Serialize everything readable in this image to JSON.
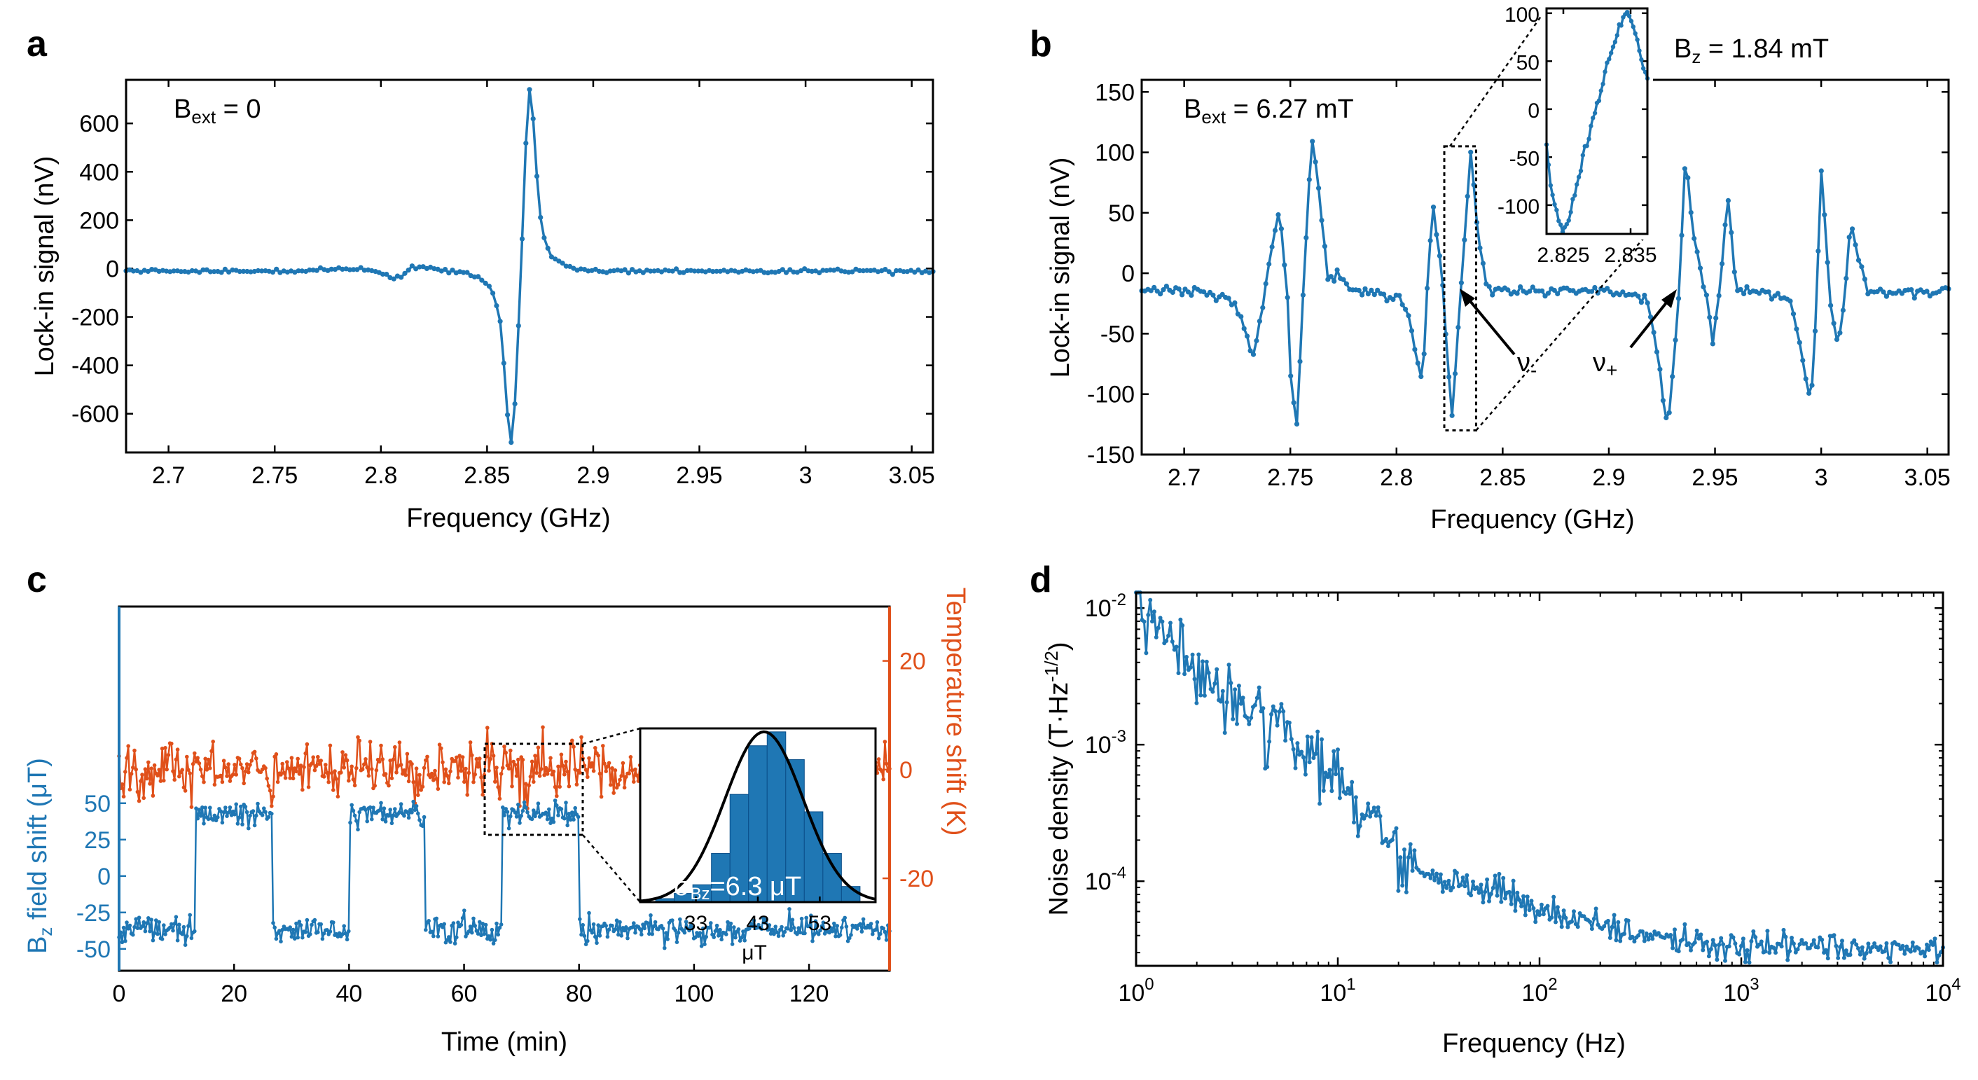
{
  "colors": {
    "series": "#1f77b4",
    "temperature": "#e0501a",
    "fit": "#000000",
    "axis": "#000000"
  },
  "panel_labels": [
    "a",
    "b",
    "c",
    "d"
  ],
  "chart_data": [
    {
      "panel": "a",
      "type": "line",
      "title": "",
      "annotation": "B_ext = 0",
      "annotation_main": "B",
      "annotation_sub": "ext",
      "annotation_rest": " = 0",
      "xlabel": "Frequency (GHz)",
      "ylabel": "Lock-in signal (nV)",
      "xlim": [
        2.68,
        3.06
      ],
      "ylim": [
        -760,
        780
      ],
      "xticks": [
        2.7,
        2.75,
        2.8,
        2.85,
        2.9,
        2.95,
        3.0,
        3.05
      ],
      "xtick_labels": [
        "2.7",
        "2.75",
        "2.8",
        "2.85",
        "2.9",
        "2.95",
        "3",
        "3.05"
      ],
      "yticks": [
        -600,
        -400,
        -200,
        0,
        200,
        400,
        600
      ],
      "ytick_labels": [
        "-600",
        "-400",
        "-200",
        "0",
        "200",
        "400",
        "600"
      ],
      "series": [
        {
          "name": "lock-in",
          "x": [
            2.68,
            2.73,
            2.77,
            2.78,
            2.8,
            2.805,
            2.81,
            2.815,
            2.83,
            2.845,
            2.852,
            2.856,
            2.858,
            2.86,
            2.862,
            2.864,
            2.866,
            2.868,
            2.869,
            2.87,
            2.872,
            2.874,
            2.876,
            2.88,
            2.89,
            2.9,
            2.93,
            2.97,
            3.02,
            3.06
          ],
          "y": [
            -10,
            -10,
            -10,
            0,
            -15,
            -40,
            -30,
            10,
            -10,
            -30,
            -80,
            -200,
            -400,
            -650,
            -750,
            -400,
            0,
            450,
            700,
            740,
            600,
            300,
            150,
            50,
            0,
            -10,
            -10,
            -10,
            -10,
            -10
          ]
        }
      ]
    },
    {
      "panel": "b",
      "type": "line",
      "title": "",
      "annotation": "B_ext = 6.27 mT",
      "annotation_main": "B",
      "annotation_sub": "ext",
      "annotation_rest": " = 6.27 mT",
      "xlabel": "Frequency (GHz)",
      "ylabel": "Lock-in signal (nV)",
      "xlim": [
        2.68,
        3.06
      ],
      "ylim": [
        -150,
        160
      ],
      "xticks": [
        2.7,
        2.75,
        2.8,
        2.85,
        2.9,
        2.95,
        3.0,
        3.05
      ],
      "xtick_labels": [
        "2.7",
        "2.75",
        "2.8",
        "2.85",
        "2.9",
        "2.95",
        "3",
        "3.05"
      ],
      "yticks": [
        -150,
        -100,
        -50,
        0,
        50,
        100,
        150
      ],
      "ytick_labels": [
        "-150",
        "-100",
        "-50",
        "0",
        "50",
        "100",
        "150"
      ],
      "series": [
        {
          "name": "lock-in",
          "x": [
            2.68,
            2.7,
            2.72,
            2.727,
            2.732,
            2.737,
            2.741,
            2.745,
            2.749,
            2.75,
            2.753,
            2.756,
            2.76,
            2.764,
            2.768,
            2.772,
            2.78,
            2.8,
            2.805,
            2.812,
            2.817,
            2.822,
            2.826,
            2.83,
            2.835,
            2.838,
            2.842,
            2.85,
            2.88,
            2.9,
            2.918,
            2.924,
            2.928,
            2.933,
            2.936,
            2.94,
            2.946,
            2.949,
            2.952,
            2.956,
            2.96,
            2.97,
            2.985,
            2.99,
            2.995,
            2.998,
            3.0,
            3.004,
            3.008,
            3.011,
            3.014,
            3.017,
            3.022,
            3.04,
            3.06
          ],
          "y": [
            -15,
            -15,
            -18,
            -35,
            -70,
            -30,
            20,
            55,
            -30,
            -80,
            -130,
            -20,
            115,
            60,
            -10,
            0,
            -15,
            -18,
            -30,
            -90,
            60,
            -15,
            -125,
            -20,
            100,
            40,
            -10,
            -15,
            -15,
            -15,
            -20,
            -80,
            -130,
            -20,
            100,
            30,
            -20,
            -60,
            -20,
            65,
            -15,
            -15,
            -20,
            -60,
            -110,
            -20,
            90,
            -20,
            -60,
            -20,
            40,
            15,
            -15,
            -15,
            -15
          ]
        }
      ],
      "labels": {
        "nu_minus": "ν",
        "nu_minus_sub": "-",
        "nu_plus": "ν",
        "nu_plus_sub": "+"
      },
      "inset": {
        "annotation": "B_z = 1.84 mT",
        "annotation_main": "B",
        "annotation_sub": "z",
        "annotation_rest": " = 1.84 mT",
        "xlim": [
          2.8225,
          2.8375
        ],
        "ylim": [
          -130,
          105
        ],
        "xticks": [
          2.825,
          2.835
        ],
        "xtick_labels": [
          "2.825",
          "2.835"
        ],
        "yticks": [
          -100,
          -50,
          0,
          50,
          100
        ],
        "ytick_labels": [
          "-100",
          "-50",
          "0",
          "50",
          "100"
        ],
        "x": [
          2.8225,
          2.823,
          2.824,
          2.825,
          2.8255,
          2.826,
          2.827,
          2.828,
          2.829,
          2.83,
          2.831,
          2.832,
          2.833,
          2.834,
          2.8345,
          2.835,
          2.836,
          2.837,
          2.8375
        ],
        "y": [
          -35,
          -70,
          -110,
          -125,
          -122,
          -110,
          -80,
          -45,
          -25,
          5,
          35,
          60,
          80,
          95,
          100,
          95,
          70,
          40,
          30
        ]
      }
    },
    {
      "panel": "c",
      "type": "line",
      "title": "",
      "xlabel": "Time (min)",
      "ylabel": "B_z field shift (μT)",
      "ylabel_main": "B",
      "ylabel_sub": "z",
      "ylabel_rest": " field shift (μT)",
      "ylabel_right": "Temperature shift (K)",
      "xlim": [
        0,
        134
      ],
      "ylim_left": [
        -65,
        185
      ],
      "ylim_right": [
        -37,
        30
      ],
      "xticks": [
        0,
        20,
        40,
        60,
        80,
        100,
        120
      ],
      "xtick_labels": [
        "0",
        "20",
        "40",
        "60",
        "80",
        "100",
        "120"
      ],
      "yticks_left": [
        -50,
        -25,
        0,
        25,
        50
      ],
      "ytick_labels_left": [
        "-50",
        "-25",
        "0",
        "25",
        "50"
      ],
      "yticks_right": [
        -20,
        0,
        20
      ],
      "ytick_labels_right": [
        "-20",
        "0",
        "20"
      ],
      "series": [
        {
          "name": "field shift",
          "axis": "left",
          "x": [
            0,
            13.3,
            13.3,
            26.7,
            26.7,
            40,
            40,
            53.3,
            53.3,
            66.7,
            66.7,
            80,
            80,
            134
          ],
          "y": [
            -37,
            -37,
            43,
            43,
            -37,
            -37,
            43,
            43,
            -37,
            -37,
            43,
            43,
            -37,
            -37
          ],
          "noise_std": 6.3
        },
        {
          "name": "temperature shift",
          "axis": "right",
          "x": [
            0,
            134
          ],
          "y": [
            0,
            0
          ],
          "noise_std": 2.5
        }
      ],
      "inset": {
        "type": "histogram",
        "xlim": [
          24,
          62
        ],
        "xticks": [
          33,
          43,
          53
        ],
        "xtick_labels": [
          "33",
          "43",
          "53"
        ],
        "xlabel": "μT",
        "bins": [
          28,
          31,
          34,
          37,
          40,
          43,
          46,
          49,
          52,
          55,
          58
        ],
        "counts": [
          2,
          5,
          10,
          28,
          62,
          90,
          98,
          82,
          52,
          28,
          9
        ],
        "fit_mean": 44,
        "fit_sigma": 6.3,
        "annotation": "σ_Bz=6.3 μT",
        "annotation_main": "σ",
        "annotation_sub": "Bz",
        "annotation_rest": "=6.3 μT"
      }
    },
    {
      "panel": "d",
      "type": "line",
      "scale": "loglog",
      "title": "",
      "xlabel": "Frequency (Hz)",
      "ylabel": "Noise density (T·Hz^-1/2)",
      "ylabel_main": "Noise density (T·Hz",
      "ylabel_sup": "-1/2",
      "ylabel_rest": ")",
      "xlim": [
        1,
        10000
      ],
      "ylim": [
        2.4e-05,
        0.013
      ],
      "xticks": [
        1,
        10,
        100,
        1000,
        10000
      ],
      "xtick_exponents": [
        "0",
        "1",
        "2",
        "3",
        "4"
      ],
      "yticks": [
        0.0001,
        0.001,
        0.01
      ],
      "ytick_exponents": [
        "-4",
        "-3",
        "-2"
      ],
      "tick_base": "10",
      "series": [
        {
          "name": "noise",
          "x": [
            1,
            1.5,
            2,
            3,
            5,
            7,
            10,
            15,
            20,
            30,
            50,
            70,
            100,
            200,
            300,
            500,
            1000,
            2000,
            5000,
            10000
          ],
          "y": [
            0.012,
            0.005,
            0.003,
            0.0022,
            0.0013,
            0.0009,
            0.0005,
            0.0003,
            0.00014,
            0.00011,
            9e-05,
            8e-05,
            6e-05,
            5e-05,
            4e-05,
            3.7e-05,
            3.5e-05,
            3.3e-05,
            3.2e-05,
            3e-05
          ]
        }
      ]
    }
  ]
}
